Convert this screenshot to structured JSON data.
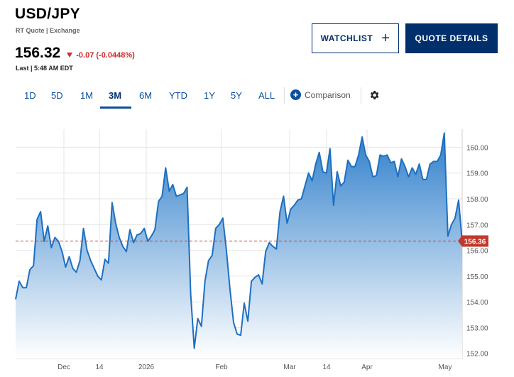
{
  "header": {
    "symbol": "USD/JPY",
    "source": "RT Quote | Exchange",
    "price": "156.32",
    "change": "-0.07 (-0.0448%)",
    "last_updated": "Last | 5:48 AM EDT",
    "down_color": "#d32a2a"
  },
  "actions": {
    "watchlist_label": "WATCHLIST",
    "watchlist_icon": "plus-icon",
    "quote_details_label": "QUOTE DETAILS"
  },
  "ranges": {
    "items": [
      "1D",
      "5D",
      "1M",
      "3M",
      "6M",
      "YTD",
      "1Y",
      "5Y",
      "ALL"
    ],
    "selected": "3M",
    "comparison_label": "Comparison",
    "settings_icon": "gear-icon"
  },
  "chart_data": {
    "type": "area",
    "ylim": [
      151.8,
      160.7
    ],
    "y_ticks": [
      "160.00",
      "159.00",
      "158.00",
      "157.00",
      "156.00",
      "155.00",
      "154.00",
      "153.00",
      "152.00"
    ],
    "y_tick_values": [
      160,
      159,
      158,
      157,
      156,
      155,
      154,
      153,
      152
    ],
    "x_tick_labels": [
      "Dec",
      "14",
      "2026",
      "Feb",
      "Mar",
      "14",
      "Apr",
      "May"
    ],
    "reference_value": 156.36,
    "reference_label": "156.36",
    "grid": true,
    "colors": {
      "line": "#1e6fc0",
      "fill_top": "#2f7fcb",
      "fill_bottom": "#ffffff",
      "reference": "#c0392b"
    },
    "series": [
      {
        "values": [
          154.1,
          154.8,
          154.55,
          154.55,
          155.25,
          155.4,
          157.2,
          157.5,
          156.35,
          156.95,
          156.1,
          156.5,
          156.35,
          155.95,
          155.35,
          155.75,
          155.3,
          155.15,
          155.6,
          156.85,
          156.0,
          155.6,
          155.3,
          155.0,
          154.85,
          155.65,
          155.5,
          157.85,
          157.05,
          156.5,
          156.15,
          155.95,
          156.8,
          156.3,
          156.6,
          156.65,
          156.85,
          156.35,
          156.55,
          156.8,
          157.9,
          158.1,
          159.2,
          158.3,
          158.55,
          158.1,
          158.15,
          158.2,
          158.45,
          154.3,
          152.2,
          153.35,
          153.05,
          154.8,
          155.6,
          155.8,
          156.85,
          157.0,
          157.25,
          156.0,
          154.5,
          153.2,
          152.75,
          152.7,
          153.95,
          153.25,
          154.8,
          154.95,
          155.05,
          154.7,
          155.95,
          156.3,
          156.15,
          156.05,
          157.5,
          158.1,
          157.05,
          157.6,
          157.75,
          157.95,
          158.0,
          158.5,
          159.0,
          158.7,
          159.35,
          159.8,
          159.05,
          159.0,
          159.95,
          157.75,
          159.05,
          158.5,
          158.65,
          159.5,
          159.25,
          159.25,
          159.7,
          160.4,
          159.7,
          159.45,
          158.85,
          158.9,
          159.7,
          159.65,
          159.7,
          159.4,
          159.45,
          158.85,
          159.55,
          159.25,
          158.85,
          159.2,
          158.95,
          159.35,
          158.75,
          158.75,
          159.35,
          159.45,
          159.45,
          159.7,
          160.55,
          156.55,
          157.0,
          157.25,
          157.95,
          156.3
        ]
      }
    ]
  }
}
